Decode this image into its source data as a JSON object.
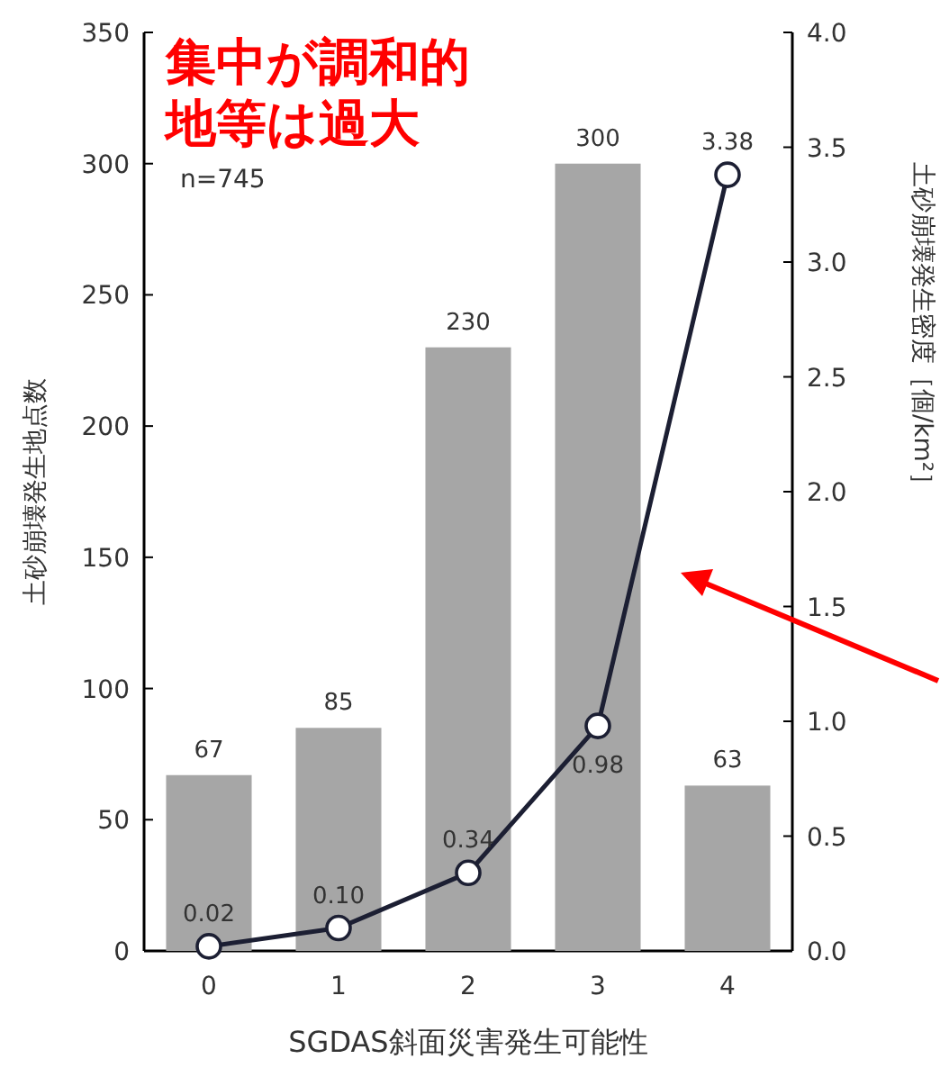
{
  "chart_data": {
    "type": "bar",
    "categories": [
      "0",
      "1",
      "2",
      "3",
      "4"
    ],
    "xlabel": "SGDAS斜面災害発生可能性",
    "ylabel": "土砂崩壊発生地点数",
    "y2label": "土砂崩壊発生密度［個/km²］",
    "ylim": [
      0,
      350
    ],
    "yticks": [
      0,
      50,
      100,
      150,
      200,
      250,
      300,
      350
    ],
    "y2lim": [
      0,
      4
    ],
    "y2ticks": [
      {
        "value": 0,
        "label": "0.0"
      },
      0.5,
      {
        "value": 1,
        "label": "1.0"
      },
      1.5,
      {
        "value": 2,
        "label": "2.0"
      },
      2.5,
      {
        "value": 3,
        "label": "3.0"
      },
      3.5,
      {
        "value": 4,
        "label": "4.0"
      }
    ],
    "series": [
      {
        "color": "#a6a6a6",
        "values": [
          67,
          85,
          230,
          300,
          63
        ],
        "value_labels": [
          "67",
          "85",
          "230",
          "300",
          "63"
        ]
      },
      {
        "type": "line",
        "axis": "y2",
        "color": "#1c1f33",
        "marker": "circle",
        "values": [
          0.02,
          0.1,
          0.34,
          0.98,
          3.38
        ],
        "value_labels": [
          "0.02",
          "0.10",
          "0.34",
          "0.98",
          "3.38"
        ]
      }
    ],
    "annotations": [
      "集中が調和的",
      "地等は過大",
      "n=745"
    ],
    "grid": false
  }
}
